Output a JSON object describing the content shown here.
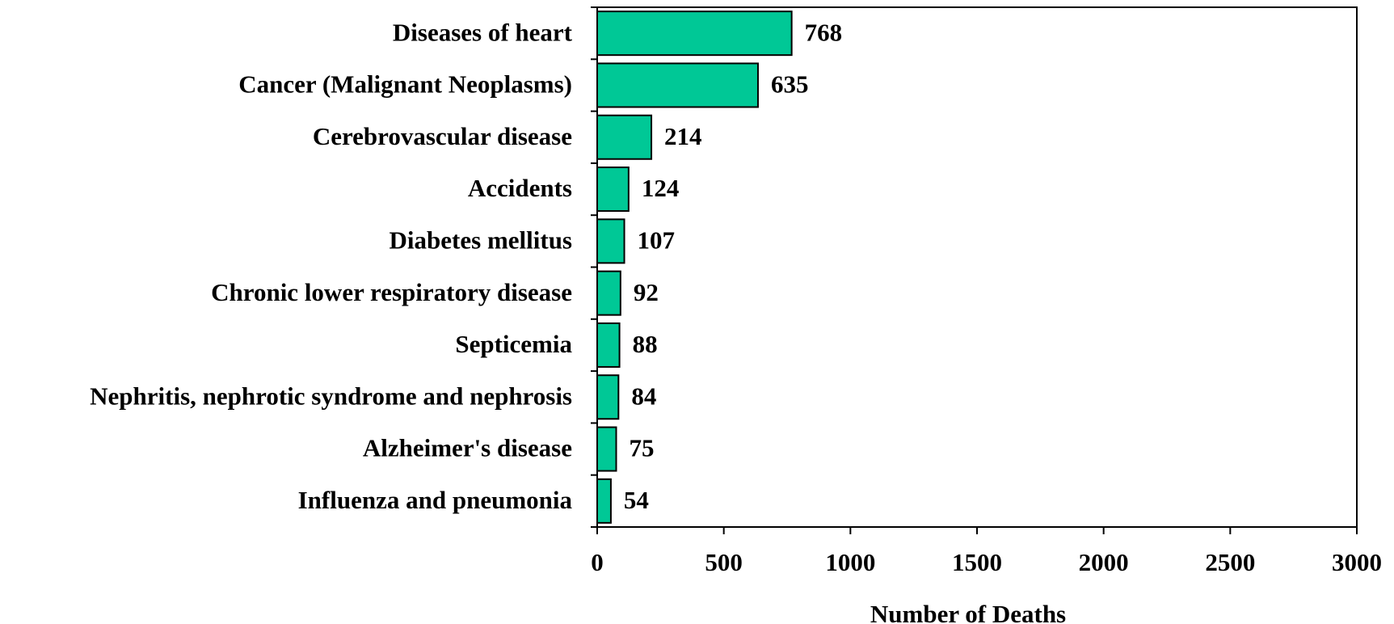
{
  "chart_data": {
    "type": "bar",
    "orientation": "horizontal",
    "categories": [
      "Diseases of heart",
      "Cancer (Malignant Neoplasms)",
      "Cerebrovascular disease",
      "Accidents",
      "Diabetes mellitus",
      "Chronic lower respiratory disease",
      "Septicemia",
      "Nephritis, nephrotic syndrome and nephrosis",
      "Alzheimer's disease",
      "Influenza and pneumonia"
    ],
    "values": [
      768,
      635,
      214,
      124,
      107,
      92,
      88,
      84,
      75,
      54
    ],
    "color": "#00c896",
    "xlabel": "Number of Deaths",
    "xlim": [
      0,
      3000
    ],
    "xticks": [
      0,
      500,
      1000,
      1500,
      2000,
      2500,
      3000
    ],
    "grid": false
  }
}
